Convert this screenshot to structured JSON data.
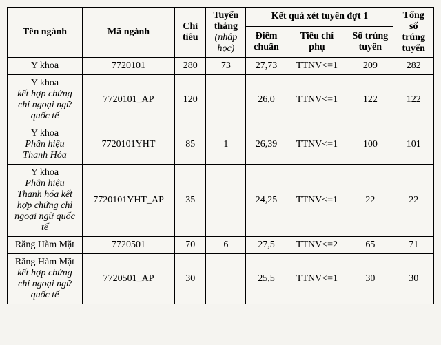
{
  "headers": {
    "name": "Tên ngành",
    "code": "Mã ngành",
    "quota": "Chỉ tiêu",
    "direct": "Tuyển thẳng",
    "direct_sub": "(nhập học)",
    "round1": "Kết quả xét tuyển đợt 1",
    "score": "Điểm chuẩn",
    "criteria": "Tiêu chí phụ",
    "pass": "Số trúng tuyển",
    "total": "Tổng số trúng tuyển"
  },
  "rows": [
    {
      "name_main": "Y khoa",
      "name_sub": "",
      "code": "7720101",
      "quota": "280",
      "direct": "73",
      "score": "27,73",
      "criteria": "TTNV<=1",
      "pass": "209",
      "total": "282"
    },
    {
      "name_main": "Y khoa",
      "name_sub": "kết hợp chứng chỉ ngoại ngữ quốc tế",
      "code": "7720101_AP",
      "quota": "120",
      "direct": "",
      "score": "26,0",
      "criteria": "TTNV<=1",
      "pass": "122",
      "total": "122"
    },
    {
      "name_main": "Y khoa",
      "name_sub": "Phân hiệu Thanh Hóa",
      "code": "7720101YHT",
      "quota": "85",
      "direct": "1",
      "score": "26,39",
      "criteria": "TTNV<=1",
      "pass": "100",
      "total": "101"
    },
    {
      "name_main": "Y khoa",
      "name_sub": "Phân hiệu Thanh hóa kết hợp chứng chỉ ngoại ngữ quốc tế",
      "code": "7720101YHT_AP",
      "quota": "35",
      "direct": "",
      "score": "24,25",
      "criteria": "TTNV<=1",
      "pass": "22",
      "total": "22"
    },
    {
      "name_main": "Răng Hàm Mặt",
      "name_sub": "",
      "code": "7720501",
      "quota": "70",
      "direct": "6",
      "score": "27,5",
      "criteria": "TTNV<=2",
      "pass": "65",
      "total": "71"
    },
    {
      "name_main": "Răng Hàm Mặt",
      "name_sub": "kết hợp chứng chỉ ngoại ngữ quốc tế",
      "code": "7720501_AP",
      "quota": "30",
      "direct": "",
      "score": "25,5",
      "criteria": "TTNV<=1",
      "pass": "30",
      "total": "30"
    }
  ]
}
